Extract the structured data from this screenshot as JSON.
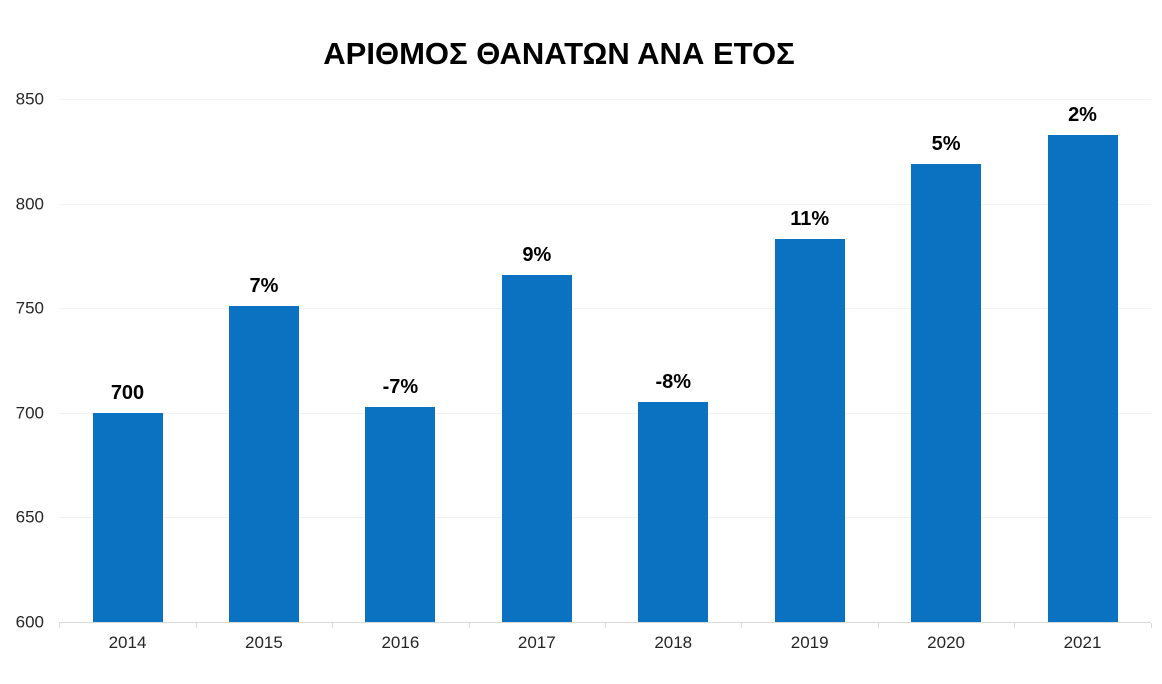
{
  "chart_data": {
    "type": "bar",
    "title": "ΑΡΙΘΜΟΣ ΘΑΝΑΤΩΝ ΑΝΑ ΕΤΟΣ",
    "categories": [
      "2014",
      "2015",
      "2016",
      "2017",
      "2018",
      "2019",
      "2020",
      "2021"
    ],
    "values": [
      700,
      751,
      703,
      766,
      705,
      783,
      819,
      833
    ],
    "bar_labels": [
      "700",
      "7%",
      "-7%",
      "9%",
      "-8%",
      "11%",
      "5%",
      "2%"
    ],
    "xlabel": "",
    "ylabel": "",
    "ylim": [
      600,
      850
    ],
    "y_ticks": [
      600,
      650,
      700,
      750,
      800,
      850
    ],
    "grid": true,
    "legend_position": "none",
    "colors": {
      "bar": "#0b72c2",
      "gridline": "#f2f2f2",
      "axis_line": "#d9d9d9",
      "title_text": "#000000",
      "bar_label_text": "#000000",
      "tick_label_text": "#262626"
    }
  }
}
